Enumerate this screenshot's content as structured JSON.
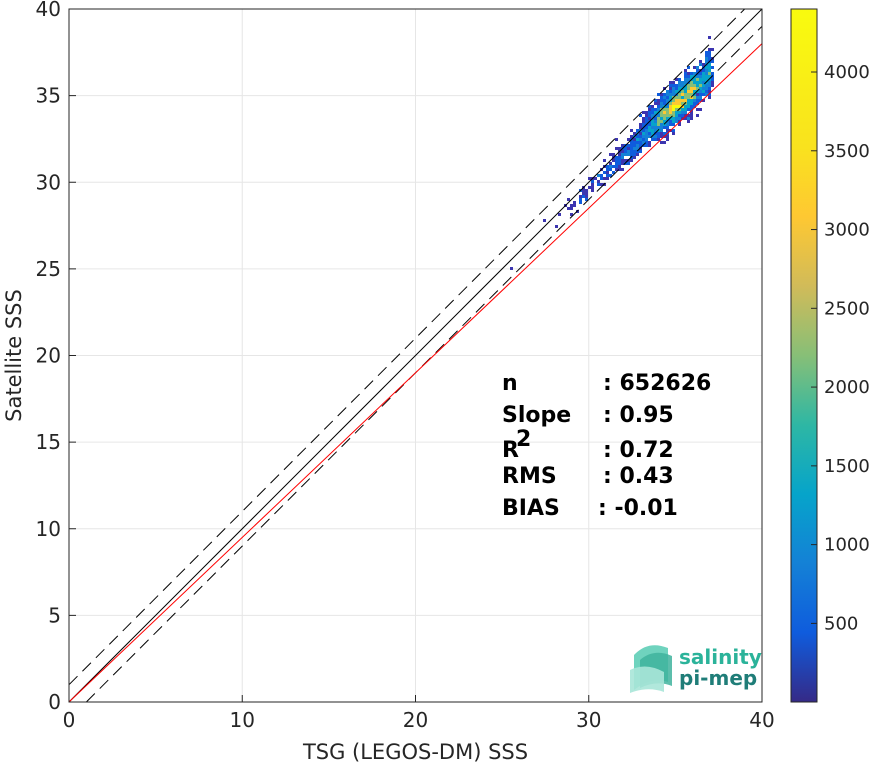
{
  "chart_data": {
    "type": "heatmap",
    "xlabel": "TSG (LEGOS-DM) SSS",
    "ylabel": "Satellite SSS",
    "xlim": [
      0,
      40
    ],
    "ylim": [
      0,
      40
    ],
    "xticks": [
      "0",
      "10",
      "20",
      "30",
      "40"
    ],
    "yticks": [
      "0",
      "5",
      "10",
      "15",
      "20",
      "25",
      "30",
      "35",
      "40"
    ],
    "grid": true,
    "colorbar": {
      "range": [
        1,
        4400
      ],
      "ticks": [
        "500",
        "1000",
        "1500",
        "2000",
        "2500",
        "3000",
        "3500",
        "4000"
      ],
      "colormap": "parula"
    },
    "reference_lines": [
      {
        "name": "identity",
        "intercept": 0,
        "slope": 1,
        "color": "#000000",
        "style": "solid"
      },
      {
        "name": "identity + 1",
        "intercept": 1,
        "slope": 1,
        "color": "#000000",
        "style": "dashed"
      },
      {
        "name": "identity - 1",
        "intercept": -1,
        "slope": 1,
        "color": "#000000",
        "style": "dashed"
      },
      {
        "name": "regression",
        "intercept": 0.0,
        "slope": 0.95,
        "color": "#ff0000",
        "style": "solid"
      }
    ],
    "density_core": {
      "x": 35.2,
      "y": 35.0,
      "peak_count": 4400
    },
    "stats": [
      {
        "key": "n",
        "sep": ": 652626"
      },
      {
        "key": "Slope",
        "sep": ": 0.95"
      },
      {
        "key": "R",
        "sup": "2",
        "sep": ": 0.72"
      },
      {
        "key": "RMS",
        "sep": ": 0.43"
      },
      {
        "key": "BIAS",
        "sep": ": -0.01"
      }
    ]
  },
  "logo": {
    "line1": "salinity",
    "line2": "pi-mep"
  }
}
